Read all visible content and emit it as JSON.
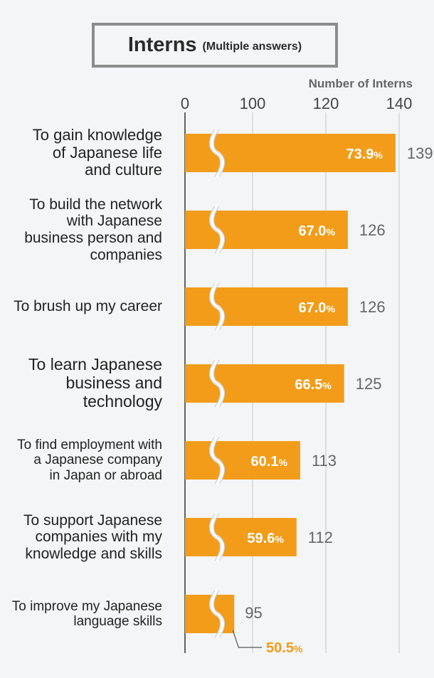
{
  "title": "Interns",
  "subtitle": "(Multiple answers)",
  "colors": {
    "bar": "#f29c1a",
    "grid": "#c8c8c8",
    "axis": "#333333",
    "value_text": "#666666",
    "pct_text": "#ffffff",
    "highlight_text": "#f29c1a"
  },
  "chart_data": {
    "type": "bar",
    "orientation": "horizontal",
    "title": "Interns",
    "subtitle": "(Multiple answers)",
    "xlabel": "Number of Interns",
    "axis_break": true,
    "xticks": [
      "0",
      "100",
      "120",
      "140"
    ],
    "categories": [
      "To gain knowledge\nof Japanese life\nand culture",
      "To build the network\nwith Japanese\nbusiness person and\ncompanies",
      "To brush up my career",
      "To learn Japanese\nbusiness and\ntechnology",
      "To find employment with\na Japanese company\nin Japan or abroad",
      "To support Japanese\ncompanies with my\nknowledge and skills",
      "To improve my Japanese\nlanguage skills"
    ],
    "values": [
      139,
      126,
      126,
      125,
      113,
      112,
      95
    ],
    "percentages": [
      "73.9",
      "67.0",
      "67.0",
      "66.5",
      "60.1",
      "59.6",
      "50.5"
    ],
    "percent_unit": "%"
  }
}
